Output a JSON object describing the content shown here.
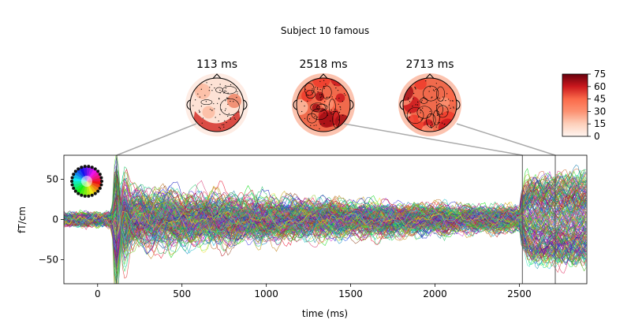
{
  "chart_data": {
    "type": "line",
    "title": "Subject 10 famous",
    "xlabel": "time (ms)",
    "ylabel": "fT/cm",
    "xlim": [
      -200,
      2900
    ],
    "ylim": [
      -80,
      80
    ],
    "xticks": [
      0,
      500,
      1000,
      1500,
      2000,
      2500
    ],
    "yticks": [
      -50,
      0,
      50
    ],
    "grid": false,
    "n_channels": 204,
    "highlight_times_ms": [
      113,
      2518,
      2713
    ],
    "topomaps": [
      {
        "label": "113 ms",
        "time": 113
      },
      {
        "label": "2518 ms",
        "time": 2518
      },
      {
        "label": "2713 ms",
        "time": 2713
      }
    ],
    "colorbar": {
      "cmap": "Reds",
      "range": [
        0,
        75
      ],
      "ticks": [
        "75",
        "60",
        "45",
        "30",
        "15",
        "0"
      ]
    },
    "annotations": [
      "channel-location-color-wheel"
    ]
  }
}
